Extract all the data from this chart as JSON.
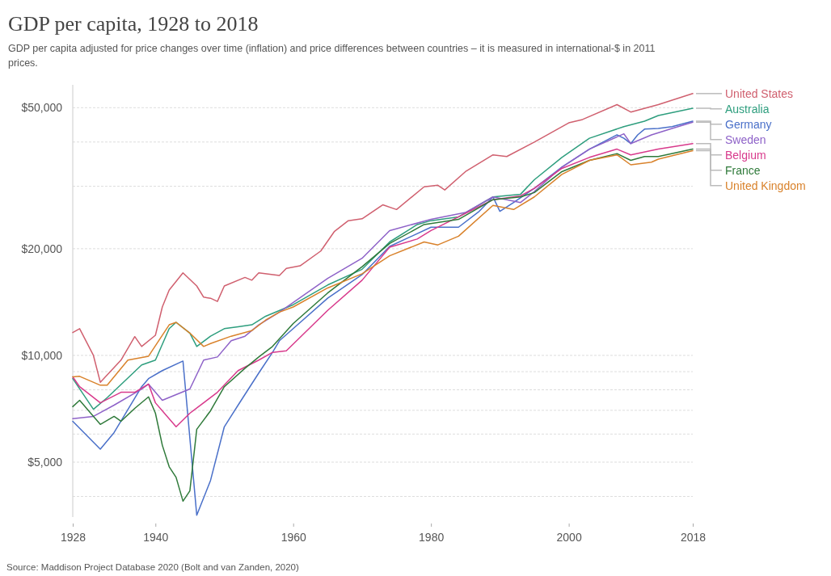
{
  "chart_data": {
    "type": "line",
    "title": "GDP per capita, 1928 to 2018",
    "subtitle": "GDP per capita adjusted for price changes over time (inflation) and price differences between countries – it is measured in international-$ in 2011 prices.",
    "annotations": [
      "Source: Maddison Project Database 2020 (Bolt and van Zanden, 2020)"
    ],
    "log": "y",
    "grid": "y",
    "legend": "right",
    "xlim": [
      1928,
      2018
    ],
    "xticks": [
      1928,
      1940,
      1960,
      1980,
      2000,
      2018
    ],
    "ylim": [
      3500,
      58000
    ],
    "yticks": [
      {
        "value": 4000,
        "label": null
      },
      {
        "value": 5000,
        "label": "$5,000"
      },
      {
        "value": 6000,
        "label": null
      },
      {
        "value": 7000,
        "label": null
      },
      {
        "value": 8000,
        "label": null
      },
      {
        "value": 9000,
        "label": null
      },
      {
        "value": 10000,
        "label": "$10,000"
      },
      {
        "value": 20000,
        "label": "$20,000"
      },
      {
        "value": 30000,
        "label": null
      },
      {
        "value": 40000,
        "label": null
      },
      {
        "value": 50000,
        "label": "$50,000"
      }
    ],
    "series": [
      {
        "name": "United States",
        "color": "#d0606f",
        "x": [
          1928,
          1929,
          1931,
          1932,
          1935,
          1937,
          1938,
          1940,
          1941,
          1942,
          1944,
          1946,
          1947,
          1948,
          1949,
          1950,
          1953,
          1954,
          1955,
          1958,
          1959,
          1961,
          1964,
          1966,
          1968,
          1970,
          1973,
          1975,
          1979,
          1981,
          1982,
          1985,
          1989,
          1991,
          1995,
          2000,
          2002,
          2007,
          2009,
          2013,
          2018
        ],
        "values": [
          11600,
          11900,
          10000,
          8400,
          9700,
          11300,
          10600,
          11400,
          13700,
          15300,
          17100,
          15700,
          14600,
          14500,
          14200,
          15700,
          16600,
          16300,
          17100,
          16800,
          17600,
          17900,
          19700,
          22400,
          24000,
          24300,
          26600,
          25800,
          29900,
          30200,
          29300,
          33000,
          36800,
          36400,
          40000,
          45300,
          46300,
          51000,
          48600,
          51000,
          54800
        ]
      },
      {
        "name": "Australia",
        "color": "#2e9e7e",
        "x": [
          1928,
          1931,
          1933,
          1938,
          1940,
          1942,
          1943,
          1945,
          1946,
          1948,
          1950,
          1952,
          1954,
          1956,
          1960,
          1965,
          1970,
          1974,
          1978,
          1980,
          1984,
          1989,
          1993,
          1995,
          1999,
          2003,
          2008,
          2011,
          2013,
          2018
        ],
        "values": [
          8600,
          7050,
          7600,
          9400,
          9700,
          11900,
          12400,
          11560,
          10600,
          11330,
          11900,
          12050,
          12200,
          12900,
          13900,
          15800,
          17500,
          20900,
          23400,
          24000,
          24600,
          28000,
          28500,
          31300,
          36200,
          41000,
          44200,
          45800,
          47500,
          49800
        ]
      },
      {
        "name": "Germany",
        "color": "#4a70c9",
        "x": [
          1928,
          1932,
          1934,
          1938,
          1939,
          1941,
          1944,
          1946,
          1948,
          1950,
          1952,
          1955,
          1957,
          1958,
          1960,
          1965,
          1970,
          1974,
          1980,
          1984,
          1987,
          1989,
          1990,
          1992,
          1995,
          1999,
          2003,
          2007,
          2008,
          2009,
          2010,
          2011,
          2013,
          2015,
          2018
        ],
        "values": [
          6520,
          5440,
          6060,
          8160,
          8600,
          9060,
          9640,
          3540,
          4440,
          6290,
          7240,
          8920,
          10200,
          11000,
          11900,
          14500,
          16900,
          20300,
          23000,
          23000,
          25500,
          28000,
          25500,
          27000,
          29600,
          34000,
          38200,
          41900,
          41000,
          39600,
          41900,
          43500,
          43700,
          44200,
          45800
        ]
      },
      {
        "name": "Sweden",
        "color": "#8e62c8",
        "x": [
          1928,
          1931,
          1934,
          1938,
          1939,
          1941,
          1945,
          1947,
          1949,
          1951,
          1953,
          1955,
          1958,
          1965,
          1970,
          1974,
          1980,
          1985,
          1989,
          1991,
          1993,
          1995,
          1999,
          2003,
          2008,
          2009,
          2012,
          2015,
          2018
        ],
        "values": [
          6630,
          6730,
          7240,
          8040,
          8300,
          7470,
          8040,
          9700,
          9900,
          11000,
          11330,
          12200,
          13250,
          16500,
          18800,
          22500,
          24200,
          25300,
          28000,
          27500,
          27000,
          29000,
          34000,
          38200,
          42200,
          39600,
          41900,
          43700,
          45500
        ]
      },
      {
        "name": "Belgium",
        "color": "#d83a8c",
        "x": [
          1928,
          1929,
          1932,
          1935,
          1937,
          1939,
          1940,
          1943,
          1945,
          1949,
          1952,
          1955,
          1957,
          1959,
          1965,
          1970,
          1974,
          1978,
          1980,
          1989,
          1993,
          1995,
          1999,
          2003,
          2007,
          2009,
          2013,
          2018
        ],
        "values": [
          8700,
          8160,
          7350,
          7870,
          7870,
          8300,
          7350,
          6290,
          6870,
          7870,
          9060,
          9700,
          10200,
          10300,
          13400,
          16300,
          20200,
          21300,
          22500,
          27500,
          28200,
          29600,
          33700,
          36200,
          38200,
          36800,
          38200,
          39600
        ]
      },
      {
        "name": "France",
        "color": "#2f7a3a",
        "x": [
          1928,
          1929,
          1932,
          1934,
          1935,
          1937,
          1939,
          1940,
          1941,
          1942,
          1943,
          1944,
          1945,
          1946,
          1948,
          1950,
          1953,
          1955,
          1957,
          1960,
          1965,
          1970,
          1974,
          1979,
          1984,
          1989,
          1993,
          1995,
          1999,
          2003,
          2007,
          2009,
          2011,
          2013,
          2018
        ],
        "values": [
          7170,
          7470,
          6390,
          6730,
          6520,
          7090,
          7640,
          6870,
          5580,
          4850,
          4530,
          3880,
          4150,
          6190,
          6980,
          8160,
          9200,
          9900,
          10600,
          12300,
          15000,
          17800,
          20700,
          23400,
          24200,
          27500,
          28000,
          28800,
          33000,
          35500,
          37100,
          35500,
          36400,
          36400,
          38200
        ]
      },
      {
        "name": "United Kingdom",
        "color": "#d9822b",
        "x": [
          1928,
          1929,
          1932,
          1933,
          1936,
          1939,
          1942,
          1943,
          1945,
          1947,
          1948,
          1951,
          1954,
          1956,
          1958,
          1960,
          1965,
          1970,
          1974,
          1979,
          1981,
          1984,
          1989,
          1992,
          1995,
          1999,
          2003,
          2007,
          2009,
          2012,
          2013,
          2018
        ],
        "values": [
          8700,
          8730,
          8240,
          8240,
          9700,
          9950,
          12200,
          12400,
          11560,
          10600,
          10800,
          11330,
          11750,
          12580,
          13250,
          13700,
          15500,
          17000,
          19100,
          20900,
          20500,
          21700,
          26500,
          25800,
          28000,
          32400,
          35500,
          36800,
          34500,
          35100,
          35800,
          37800
        ]
      }
    ]
  }
}
